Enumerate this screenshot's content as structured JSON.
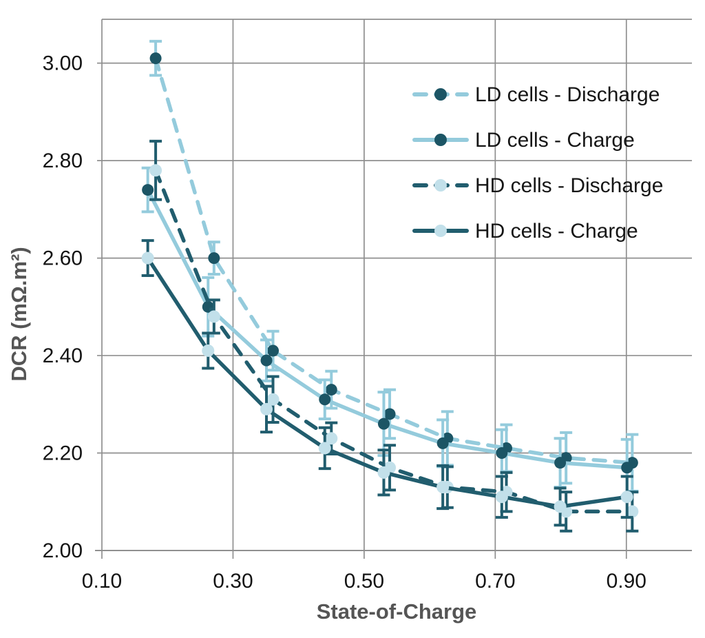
{
  "chart_data": {
    "type": "line",
    "title": "",
    "xlabel": "State-of-Charge",
    "ylabel": "DCR (mΩ.m²)",
    "xlim": [
      0.1,
      1.0
    ],
    "ylim": [
      2.0,
      3.09
    ],
    "x_ticks": [
      0.1,
      0.3,
      0.5,
      0.7,
      0.9
    ],
    "y_ticks": [
      2.0,
      2.2,
      2.4,
      2.6,
      2.8,
      3.0
    ],
    "x_tick_labels": [
      "0.10",
      "0.30",
      "0.50",
      "0.70",
      "0.90"
    ],
    "y_tick_labels": [
      "2.00",
      "2.20",
      "2.40",
      "2.60",
      "2.80",
      "3.00"
    ],
    "grid": true,
    "legend_position": "upper right",
    "series": [
      {
        "name": "LD cells - Discharge",
        "line_style": "dashed",
        "line_color": "#94CBDC",
        "marker_color": "#1C5565",
        "error_color": "#94CBDC",
        "x": [
          0.182,
          0.271,
          0.361,
          0.45,
          0.539,
          0.627,
          0.717,
          0.808,
          0.909
        ],
        "y": [
          3.01,
          2.6,
          2.41,
          2.33,
          2.28,
          2.23,
          2.21,
          2.19,
          2.18
        ],
        "yerr": [
          0.035,
          0.033,
          0.04,
          0.038,
          0.05,
          0.055,
          0.048,
          0.052,
          0.058
        ]
      },
      {
        "name": "LD cells - Charge",
        "line_style": "solid",
        "line_color": "#94CBDC",
        "marker_color": "#1C5565",
        "error_color": "#94CBDC",
        "x": [
          0.17,
          0.262,
          0.351,
          0.44,
          0.53,
          0.62,
          0.71,
          0.799,
          0.901
        ],
        "y": [
          2.74,
          2.5,
          2.39,
          2.31,
          2.26,
          2.22,
          2.2,
          2.18,
          2.17
        ],
        "yerr": [
          0.045,
          0.06,
          0.042,
          0.04,
          0.065,
          0.048,
          0.048,
          0.05,
          0.058
        ]
      },
      {
        "name": "HD cells - Discharge",
        "line_style": "dashed",
        "line_color": "#215D6E",
        "marker_color": "#C2E0EA",
        "error_color": "#215D6E",
        "x": [
          0.182,
          0.271,
          0.361,
          0.45,
          0.539,
          0.627,
          0.717,
          0.808,
          0.909
        ],
        "y": [
          2.78,
          2.48,
          2.31,
          2.23,
          2.17,
          2.13,
          2.12,
          2.08,
          2.08
        ],
        "yerr": [
          0.06,
          0.034,
          0.047,
          0.032,
          0.046,
          0.042,
          0.04,
          0.04,
          0.04
        ]
      },
      {
        "name": "HD cells - Charge",
        "line_style": "solid",
        "line_color": "#215D6E",
        "marker_color": "#C2E0EA",
        "error_color": "#215D6E",
        "x": [
          0.17,
          0.262,
          0.351,
          0.44,
          0.53,
          0.62,
          0.71,
          0.799,
          0.901
        ],
        "y": [
          2.6,
          2.41,
          2.29,
          2.21,
          2.16,
          2.13,
          2.11,
          2.09,
          2.11
        ],
        "yerr": [
          0.036,
          0.036,
          0.047,
          0.042,
          0.046,
          0.044,
          0.042,
          0.038,
          0.042
        ]
      }
    ]
  },
  "colors": {
    "light_blue": "#94CBDC",
    "dark_teal": "#215D6E",
    "light_marker": "#C2E0EA",
    "dark_marker": "#1C5565",
    "grid": "#8F8F8F",
    "tick_text": "#141414",
    "title_text": "#555555",
    "background": "#FFFFFF"
  }
}
